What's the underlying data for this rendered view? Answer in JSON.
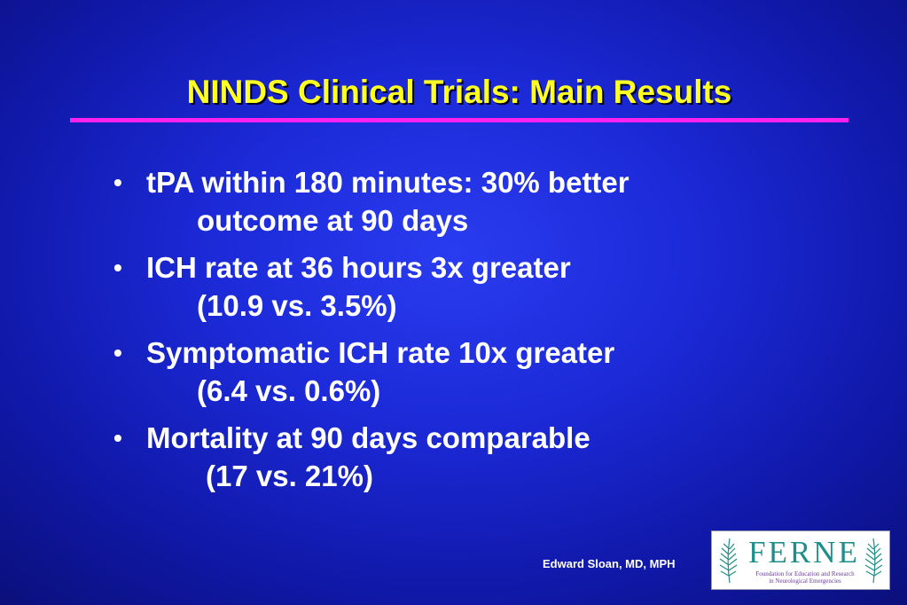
{
  "slide": {
    "title": "NINDS Clinical Trials:  Main Results",
    "bullet_glyph": "•",
    "bullets": [
      {
        "line1": "tPA within 180 minutes:  30% better",
        "line2": "outcome at 90 days"
      },
      {
        "line1": "ICH rate at 36 hours 3x greater",
        "line2": "(10.9 vs. 3.5%)"
      },
      {
        "line1": "Symptomatic ICH rate 10x greater",
        "line2": "(6.4 vs. 0.6%)"
      },
      {
        "line1": "Mortality at 90 days comparable",
        "line2": "(17 vs. 21%)"
      }
    ],
    "author": "Edward Sloan, MD, MPH"
  },
  "logo": {
    "wordmark": "FERNE",
    "subtitle_line1": "Foundation for Education and Research",
    "subtitle_line2": "in Neurological Emergencies",
    "icon": "fern-leaf-icon"
  },
  "colors": {
    "background": "#1c2ad8",
    "title": "#ffff22",
    "title_rule": "#ff22ee",
    "body_text": "#ffffff",
    "logo_green": "#1e8e8a",
    "logo_purple": "#6a3a9a"
  }
}
